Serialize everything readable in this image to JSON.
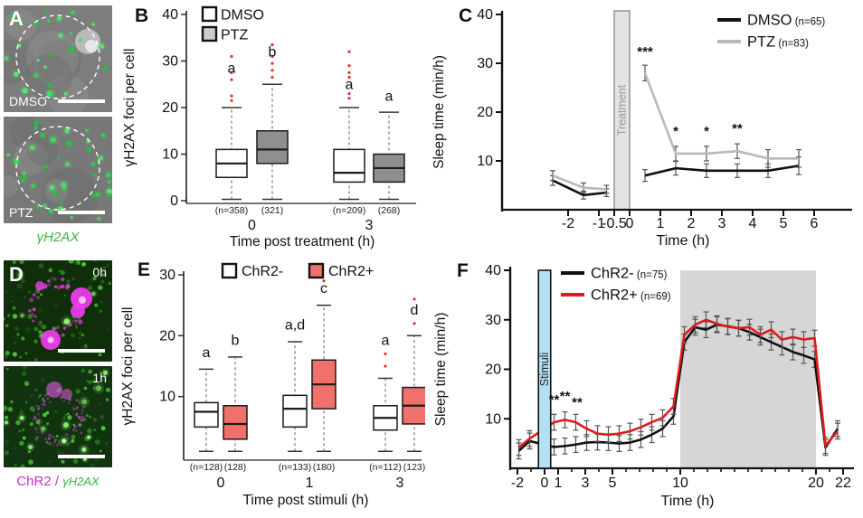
{
  "figure": {
    "background": "#ffffff",
    "panel_labels": [
      "A",
      "B",
      "C",
      "D",
      "E",
      "F"
    ],
    "panel_a": {
      "images": [
        {
          "tag": "DMSO"
        },
        {
          "tag": "PTZ"
        }
      ],
      "caption": "γH2AX",
      "caption_color": "#3db53d"
    },
    "panel_d": {
      "images": [
        {
          "tag": "0h"
        },
        {
          "tag": "1h"
        }
      ],
      "caption_parts": [
        {
          "text": "ChR2",
          "color": "#cc2fcc",
          "italic": false
        },
        {
          "text": " / ",
          "color": "#cc2fcc",
          "italic": false
        },
        {
          "text": "γH2AX",
          "color": "#3db53d",
          "italic": true
        }
      ]
    }
  },
  "chart_data": [
    {
      "panel": "B",
      "type": "boxplot",
      "title": "",
      "ylabel": "γH2AX foci per cell",
      "xlabel": "Time post treatment (h)",
      "ylim": [
        0,
        40
      ],
      "yticks": [
        0,
        10,
        20,
        30,
        40
      ],
      "legend_position": "top-left",
      "legend": [
        {
          "label": "DMSO",
          "fill": "#ffffff"
        },
        {
          "label": "PTZ",
          "fill": "#cccccc"
        }
      ],
      "outlier_color": "#e63030",
      "groups": [
        {
          "label": "0",
          "boxes": [
            {
              "series": "DMSO",
              "fill": "#ffffff",
              "n_label": "(n=358)",
              "letter": "a",
              "letter_y": 27.5,
              "whisker_low": 0.3,
              "q1": 5,
              "median": 8,
              "q3": 11,
              "whisker_high": 20,
              "outliers": [
                21.5,
                22.5,
                26,
                27.5,
                31
              ]
            },
            {
              "series": "PTZ",
              "fill": "#8f8f8f",
              "n_label": "(321)",
              "letter": "b",
              "letter_y": 31,
              "whisker_low": 0.3,
              "q1": 8,
              "median": 11,
              "q3": 15,
              "whisker_high": 25,
              "outliers": [
                26.5,
                28,
                29.5,
                31,
                33.5
              ]
            }
          ]
        },
        {
          "label": "3",
          "boxes": [
            {
              "series": "DMSO",
              "fill": "#ffffff",
              "n_label": "(n=209)",
              "letter": "a",
              "letter_y": 24,
              "whisker_low": 0.3,
              "q1": 4,
              "median": 6,
              "q3": 11,
              "whisker_high": 20,
              "outliers": [
                22,
                23,
                26.5,
                27.5,
                29,
                32
              ]
            },
            {
              "series": "PTZ",
              "fill": "#8f8f8f",
              "n_label": "(268)",
              "letter": "a",
              "letter_y": 21.5,
              "whisker_low": 0.3,
              "q1": 4,
              "median": 7,
              "q3": 10,
              "whisker_high": 19,
              "outliers": []
            }
          ]
        }
      ]
    },
    {
      "panel": "C",
      "type": "line",
      "title": "",
      "ylabel": "Sleep time (min/h)",
      "xlabel": "Time (h)",
      "ylim": [
        0,
        40
      ],
      "yticks": [
        10,
        20,
        30,
        40
      ],
      "xlim": [
        -3.4,
        6.5
      ],
      "xticks": [
        -2,
        -1,
        -0.5,
        0,
        1,
        2,
        3,
        4,
        5,
        6
      ],
      "legend_position": "top-right",
      "bands": [
        {
          "label": "Treatment",
          "x0": -0.5,
          "x1": 0,
          "fill": "#e3e3e3",
          "stroke": "#9a9a9a",
          "label_color": "#9a9a9a",
          "front": false
        }
      ],
      "series": [
        {
          "name": "DMSO",
          "n_label": "(n=65)",
          "color": "#111111",
          "segments": [
            {
              "x": [
                -2.5,
                -1.5,
                -0.75
              ],
              "y": [
                6,
                3,
                3.5
              ],
              "err": [
                1,
                0.8,
                0.8
              ]
            },
            {
              "x": [
                0.5,
                1.5,
                2.5,
                3.5,
                4.5,
                5.5
              ],
              "y": [
                7,
                8.5,
                8,
                8,
                8,
                9
              ],
              "err": [
                1.2,
                1.4,
                1.4,
                1.4,
                1.4,
                1.8
              ]
            }
          ]
        },
        {
          "name": "PTZ",
          "n_label": "(n=83)",
          "color": "#b9b9b9",
          "segments": [
            {
              "x": [
                -2.5,
                -1.5,
                -0.75
              ],
              "y": [
                7,
                4.5,
                4.2
              ],
              "err": [
                1,
                1,
                0.8
              ]
            },
            {
              "x": [
                0.5,
                1.5,
                2.5,
                3.5,
                4.5,
                5.5
              ],
              "y": [
                28,
                11.5,
                11.5,
                12,
                10.5,
                10.5
              ],
              "err": [
                1.6,
                1.5,
                1.5,
                1.5,
                1.8,
                1.8
              ]
            }
          ]
        }
      ],
      "annotations": [
        {
          "text": "***",
          "x": 0.5,
          "y": 31.5
        },
        {
          "text": "*",
          "x": 1.5,
          "y": 15.2
        },
        {
          "text": "*",
          "x": 2.5,
          "y": 15.2
        },
        {
          "text": "**",
          "x": 3.5,
          "y": 15.7
        }
      ]
    },
    {
      "panel": "E",
      "type": "boxplot",
      "title": "",
      "ylabel": "γH2AX foci per cell",
      "xlabel": "Time post stimuli (h)",
      "ylim": [
        0,
        30
      ],
      "yticks": [
        10,
        20,
        30
      ],
      "legend_position": "top-center",
      "legend": [
        {
          "label": "ChR2-",
          "fill": "#ffffff"
        },
        {
          "label": "ChR2+",
          "fill": "#f0716c"
        }
      ],
      "outlier_color": "#e63030",
      "groups": [
        {
          "label": "0",
          "boxes": [
            {
              "series": "ChR2-",
              "fill": "#ffffff",
              "n_label": "(n=128)",
              "letter": "a",
              "letter_y": 16.5,
              "whisker_low": 1,
              "q1": 5,
              "median": 7.5,
              "q3": 9,
              "whisker_high": 14.5,
              "outliers": []
            },
            {
              "series": "ChR2+",
              "fill": "#f0716c",
              "n_label": "(128)",
              "letter": "b",
              "letter_y": 18.5,
              "whisker_low": 1,
              "q1": 3,
              "median": 5.5,
              "q3": 8.5,
              "whisker_high": 16.5,
              "outliers": []
            }
          ]
        },
        {
          "label": "1",
          "boxes": [
            {
              "series": "ChR2-",
              "fill": "#ffffff",
              "n_label": "(n=133)",
              "letter": "a,d",
              "letter_y": 21,
              "whisker_low": 1,
              "q1": 5,
              "median": 8,
              "q3": 10.2,
              "whisker_high": 19,
              "outliers": []
            },
            {
              "series": "ChR2+",
              "fill": "#f0716c",
              "n_label": "(180)",
              "letter": "c",
              "letter_y": 27,
              "whisker_low": 1,
              "q1": 8,
              "median": 12,
              "q3": 16,
              "whisker_high": 25,
              "outliers": [
                29
              ]
            }
          ]
        },
        {
          "label": "3",
          "boxes": [
            {
              "series": "ChR2-",
              "fill": "#ffffff",
              "n_label": "(n=112)",
              "letter": "a",
              "letter_y": 18.5,
              "whisker_low": 1,
              "q1": 4.5,
              "median": 6.5,
              "q3": 8.5,
              "whisker_high": 13,
              "outliers": [
                15,
                17
              ]
            },
            {
              "series": "ChR2+",
              "fill": "#f0716c",
              "n_label": "(123)",
              "letter": "d",
              "letter_y": 23.5,
              "whisker_low": 1,
              "q1": 5.5,
              "median": 8.5,
              "q3": 11.5,
              "whisker_high": 20,
              "outliers": [
                22,
                26
              ]
            }
          ]
        }
      ]
    },
    {
      "panel": "F",
      "type": "line",
      "title": "",
      "ylabel": "Sleep time (min/h)",
      "xlabel": "Time (h)",
      "ylim": [
        0,
        40
      ],
      "yticks": [
        10,
        20,
        30,
        40
      ],
      "xlim": [
        -2.6,
        22.6
      ],
      "xticks": [
        -2,
        0,
        1,
        3,
        5,
        10,
        20,
        22
      ],
      "minor_tick_step": 1,
      "legend_position": "top-left",
      "bands": [
        {
          "label": "",
          "x0": 10,
          "x1": 20,
          "fill": "#d6d6d6",
          "front": false
        },
        {
          "label": "Stimuli",
          "x0": -0.45,
          "x1": 0.45,
          "fill": "#b5e0f2",
          "stroke": "#111111",
          "label_color": "#222222",
          "front": true
        }
      ],
      "series": [
        {
          "name": "ChR2-",
          "n_label": "(n=75)",
          "color": "#111111",
          "err": 1.6,
          "x": [
            -1.9,
            -1.1,
            0.7,
            1.5,
            2.3,
            3.1,
            3.9,
            4.7,
            5.5,
            6.3,
            7.1,
            7.9,
            8.7,
            9.5,
            10.3,
            11.1,
            11.9,
            12.7,
            13.5,
            14.3,
            15.1,
            15.9,
            16.7,
            17.5,
            18.3,
            19.1,
            19.9,
            20.7,
            21.6
          ],
          "y": [
            3.5,
            5.5,
            4.3,
            4.5,
            4.8,
            5.2,
            5.3,
            5.2,
            5.0,
            5.2,
            5.8,
            6.8,
            8.0,
            10.5,
            25.5,
            28.5,
            28.0,
            29.0,
            28.7,
            28.3,
            27.5,
            26.5,
            25.5,
            24.5,
            23.5,
            22.8,
            22.0,
            4.2,
            8.0
          ]
        },
        {
          "name": "ChR2+",
          "n_label": "(n=69)",
          "color": "#e01b1b",
          "err": 1.6,
          "x": [
            -1.9,
            -1.1,
            0.7,
            1.5,
            2.3,
            3.1,
            3.9,
            4.7,
            5.5,
            6.3,
            7.1,
            7.9,
            8.7,
            9.5,
            10.3,
            11.1,
            11.9,
            12.7,
            13.5,
            14.3,
            15.1,
            15.9,
            16.7,
            17.5,
            18.3,
            19.1,
            19.9,
            20.7,
            21.6
          ],
          "y": [
            4.2,
            6.0,
            9.3,
            9.8,
            9.3,
            8.0,
            7.0,
            6.8,
            7.0,
            7.5,
            8.3,
            9.3,
            10.2,
            12.5,
            27.0,
            29.0,
            30.0,
            29.2,
            28.6,
            28.3,
            28.5,
            27.0,
            28.0,
            26.0,
            26.5,
            26.0,
            26.3,
            4.6,
            7.5
          ]
        }
      ],
      "annotations": [
        {
          "text": "**",
          "x": 0.7,
          "y": 13.0
        },
        {
          "text": "**",
          "x": 1.5,
          "y": 13.7
        },
        {
          "text": "**",
          "x": 2.4,
          "y": 12.4
        }
      ]
    }
  ]
}
